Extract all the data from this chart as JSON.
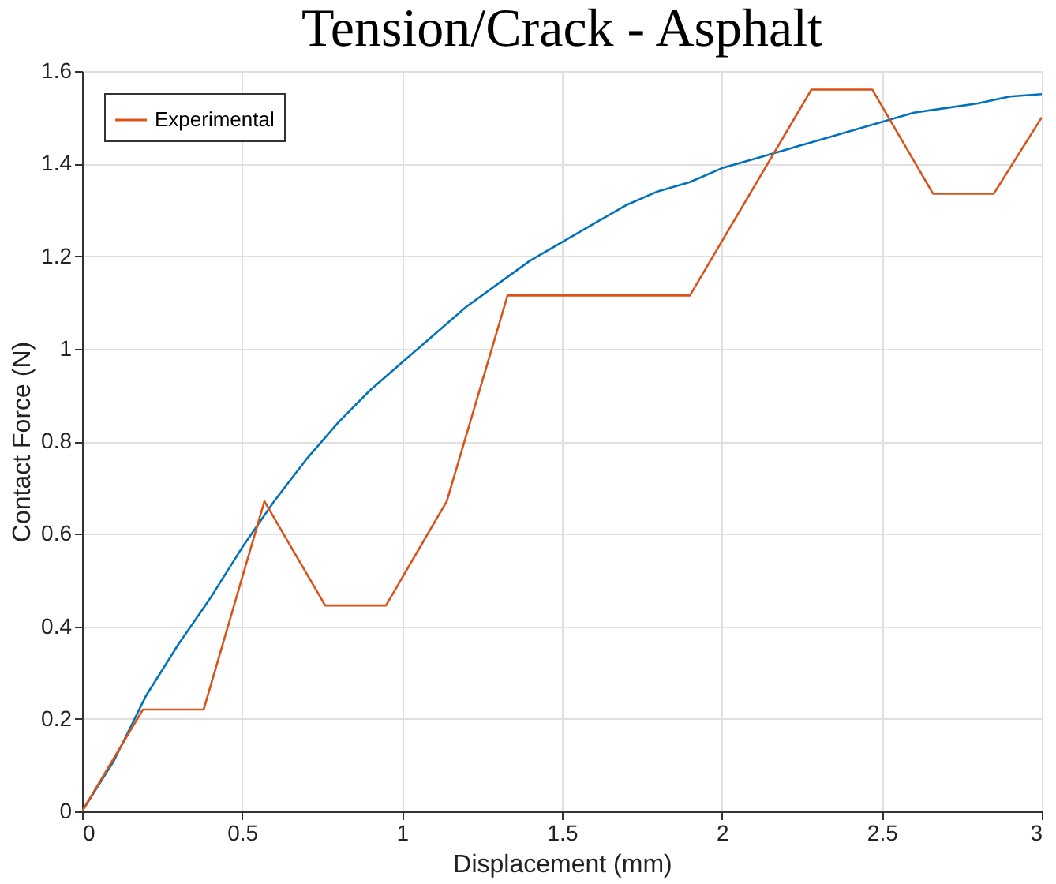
{
  "chart_data": {
    "type": "line",
    "title": "Tension/Crack - Asphalt",
    "xlabel": "Displacement (mm)",
    "ylabel": "Contact Force (N)",
    "xlim": [
      0,
      3
    ],
    "xticks": [
      0,
      0.5,
      1,
      1.5,
      2,
      2.5,
      3
    ],
    "ylim": [
      0,
      1.6
    ],
    "yticks": [
      0,
      0.2,
      0.4,
      0.6,
      0.8,
      1,
      1.2,
      1.4,
      1.6
    ],
    "grid": true,
    "legend": "top left",
    "line_style": "solid",
    "marker": "none",
    "series": [
      {
        "color": "#0072bd",
        "x": [
          0,
          0.1,
          0.2,
          0.3,
          0.4,
          0.5,
          0.6,
          0.7,
          0.8,
          0.9,
          1.0,
          1.1,
          1.2,
          1.3,
          1.4,
          1.5,
          1.6,
          1.7,
          1.8,
          1.9,
          2.0,
          2.1,
          2.2,
          2.3,
          2.4,
          2.5,
          2.6,
          2.7,
          2.8,
          2.9,
          3.0
        ],
        "values": [
          0,
          0.11,
          0.25,
          0.36,
          0.46,
          0.57,
          0.67,
          0.76,
          0.84,
          0.91,
          0.97,
          1.03,
          1.09,
          1.14,
          1.19,
          1.23,
          1.27,
          1.31,
          1.34,
          1.36,
          1.39,
          1.41,
          1.43,
          1.45,
          1.47,
          1.49,
          1.51,
          1.52,
          1.53,
          1.545,
          1.55
        ]
      },
      {
        "name": "Experimental",
        "color": "#d95319",
        "x": [
          0,
          0.19,
          0.38,
          0.57,
          0.76,
          0.95,
          1.14,
          1.33,
          1.9,
          2.28,
          2.47,
          2.66,
          2.85,
          3
        ],
        "values": [
          0,
          0.22,
          0.22,
          0.67,
          0.445,
          0.445,
          0.67,
          1.115,
          1.115,
          1.56,
          1.56,
          1.335,
          1.335,
          1.5
        ]
      }
    ]
  }
}
